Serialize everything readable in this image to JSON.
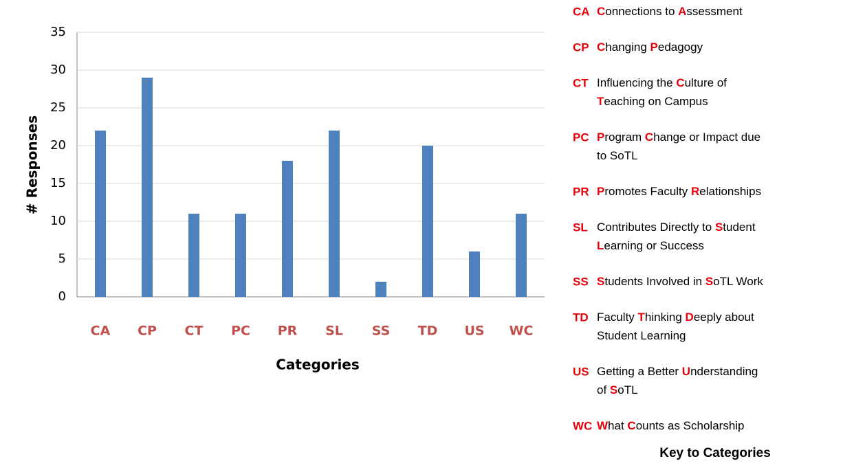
{
  "chart_data": {
    "type": "bar",
    "categories": [
      "CA",
      "CP",
      "CT",
      "PC",
      "PR",
      "SL",
      "SS",
      "TD",
      "US",
      "WC"
    ],
    "values": [
      22,
      29,
      11,
      11,
      18,
      22,
      2,
      20,
      6,
      11
    ],
    "color": "#4f81bd",
    "category_color": "#c0504d",
    "ylim": [
      0,
      35
    ],
    "yticks": [
      0,
      5,
      10,
      15,
      20,
      25,
      30,
      35
    ],
    "grid": true,
    "x_label": "Categories",
    "y_label": "# Responses"
  },
  "key": {
    "title": "Key to Categories",
    "highlight_color": "#e8000b",
    "items": [
      {
        "code": "CA",
        "lines": [
          [
            {
              "text": "C",
              "red": true
            },
            {
              "text": "onnections to "
            },
            {
              "text": "A",
              "red": true
            },
            {
              "text": "ssessment"
            }
          ]
        ]
      },
      {
        "code": "CP",
        "lines": [
          [
            {
              "text": "C",
              "red": true
            },
            {
              "text": "hanging "
            },
            {
              "text": "P",
              "red": true
            },
            {
              "text": "edagogy"
            }
          ]
        ]
      },
      {
        "code": "CT",
        "lines": [
          [
            {
              "text": "Influencing the "
            },
            {
              "text": "C",
              "red": true
            },
            {
              "text": "ulture of"
            }
          ],
          [
            {
              "text": "T",
              "red": true
            },
            {
              "text": "eaching on Campus"
            }
          ]
        ]
      },
      {
        "code": "PC",
        "lines": [
          [
            {
              "text": "P",
              "red": true
            },
            {
              "text": "rogram "
            },
            {
              "text": "C",
              "red": true
            },
            {
              "text": "hange or Impact due"
            }
          ],
          [
            {
              "text": "to SoTL"
            }
          ]
        ]
      },
      {
        "code": "PR",
        "lines": [
          [
            {
              "text": "P",
              "red": true
            },
            {
              "text": "romotes Faculty "
            },
            {
              "text": "R",
              "red": true
            },
            {
              "text": "elationships"
            }
          ]
        ]
      },
      {
        "code": "SL",
        "lines": [
          [
            {
              "text": "Contributes Directly to "
            },
            {
              "text": "S",
              "red": true
            },
            {
              "text": "tudent"
            }
          ],
          [
            {
              "text": "L",
              "red": true
            },
            {
              "text": "earning or Success"
            }
          ]
        ]
      },
      {
        "code": "SS",
        "lines": [
          [
            {
              "text": "S",
              "red": true
            },
            {
              "text": "tudents Involved in "
            },
            {
              "text": "S",
              "red": true
            },
            {
              "text": "oTL Work"
            }
          ]
        ]
      },
      {
        "code": "TD",
        "lines": [
          [
            {
              "text": "Faculty "
            },
            {
              "text": "T",
              "red": true
            },
            {
              "text": "hinking "
            },
            {
              "text": "D",
              "red": true
            },
            {
              "text": "eeply about"
            }
          ],
          [
            {
              "text": "Student Learning"
            }
          ]
        ]
      },
      {
        "code": "US",
        "lines": [
          [
            {
              "text": "Getting a Better "
            },
            {
              "text": "U",
              "red": true
            },
            {
              "text": "nderstanding"
            }
          ],
          [
            {
              "text": "of "
            },
            {
              "text": "S",
              "red": true
            },
            {
              "text": "oTL"
            }
          ]
        ]
      },
      {
        "code": "WC",
        "lines": [
          [
            {
              "text": "W",
              "red": true
            },
            {
              "text": "hat "
            },
            {
              "text": "C",
              "red": true
            },
            {
              "text": "ounts as Scholarship"
            }
          ]
        ]
      }
    ]
  }
}
